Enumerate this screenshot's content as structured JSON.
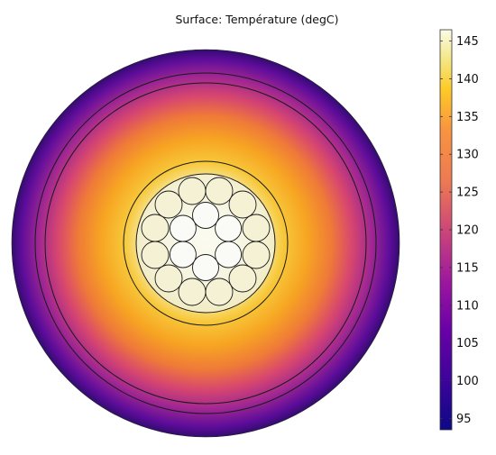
{
  "plot": {
    "title": "Surface: Température (degC)"
  },
  "colorbar": {
    "ticks": [
      "145",
      "140",
      "135",
      "130",
      "125",
      "120",
      "115",
      "110",
      "105",
      "100",
      "95"
    ],
    "min": 93.5,
    "max": 146.5,
    "colors": [
      "#0d0887",
      "#5c01a6",
      "#9c179e",
      "#cc4778",
      "#ed7953",
      "#f89441",
      "#fdca26",
      "#f0f921",
      "#fbfbe8"
    ]
  }
}
